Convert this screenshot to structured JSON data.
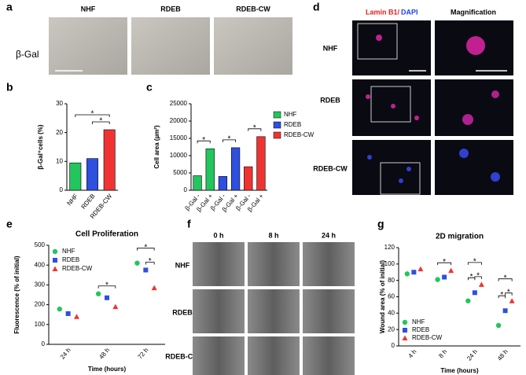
{
  "panel_letters": [
    "a",
    "b",
    "c",
    "d",
    "e",
    "f",
    "g"
  ],
  "panel_a": {
    "row_label": "β-Gal",
    "columns": [
      "NHF",
      "RDEB",
      "RDEB-CW"
    ]
  },
  "panel_d": {
    "stain_red": "Lamin B1/",
    "stain_blue": "DAPI",
    "column_2": "Magnification",
    "rows": [
      "NHF",
      "RDEB",
      "RDEB-CW"
    ]
  },
  "panel_f": {
    "columns": [
      "0 h",
      "8 h",
      "24 h"
    ],
    "rows": [
      "NHF",
      "RDEB",
      "RDEB-CW"
    ]
  },
  "chart_data": [
    {
      "type": "bar",
      "ylabel": "β-Gal⁺cells (%)",
      "categories": [
        "NHF",
        "RDEB",
        "RDEB-CW"
      ],
      "values": [
        9.5,
        11,
        21
      ],
      "colors": [
        "#22c55e",
        "#2f4fe0",
        "#ef3333"
      ],
      "ylim": [
        0,
        30
      ],
      "yticks": [
        0,
        10,
        20,
        30
      ],
      "annotations": [
        {
          "label": "*",
          "between": [
            0,
            2
          ]
        },
        {
          "label": "*",
          "between": [
            1,
            2
          ]
        }
      ]
    },
    {
      "type": "bar",
      "ylabel": "Cell area (µm²)",
      "categories": [
        "β-Gal -",
        "β-Gal +",
        "β-Gal -",
        "β-Gal +",
        "β-Gal -",
        "β-Gal +"
      ],
      "series": [
        {
          "name": "NHF",
          "color": "#22c55e",
          "values": [
            4200,
            12000,
            null,
            null,
            null,
            null
          ]
        },
        {
          "name": "RDEB",
          "color": "#2f4fe0",
          "values": [
            null,
            null,
            4000,
            12300,
            null,
            null
          ]
        },
        {
          "name": "RDEB-CW",
          "color": "#ef3333",
          "values": [
            null,
            null,
            null,
            null,
            6800,
            15500
          ]
        }
      ],
      "ylim": [
        0,
        25000
      ],
      "yticks": [
        0,
        5000,
        10000,
        15000,
        20000,
        25000
      ],
      "legend": "right",
      "annotations": [
        {
          "label": "*",
          "between": [
            0,
            1
          ]
        },
        {
          "label": "*",
          "between": [
            2,
            3
          ]
        },
        {
          "label": "*",
          "between": [
            4,
            5
          ]
        }
      ]
    },
    {
      "type": "dot",
      "title": "Cell Proliferation",
      "ylabel": "Fluorescence (% of initial)",
      "xlabel": "Time (hours)",
      "categories": [
        "24 h",
        "48 h",
        "72 h"
      ],
      "series": [
        {
          "name": "NHF",
          "color": "#22c55e",
          "marker": "circle",
          "values": [
            178,
            255,
            410
          ]
        },
        {
          "name": "RDEB",
          "color": "#2f4fe0",
          "marker": "square",
          "values": [
            155,
            235,
            375
          ]
        },
        {
          "name": "RDEB-CW",
          "color": "#ef3333",
          "marker": "triangle",
          "values": [
            140,
            190,
            285
          ]
        }
      ],
      "ylim": [
        0,
        500
      ],
      "yticks": [
        0,
        100,
        200,
        300,
        400,
        500
      ],
      "legend": "upper left",
      "annotations": [
        {
          "label": "*",
          "category": 1,
          "between": [
            0,
            2
          ]
        },
        {
          "label": "*",
          "category": 2,
          "between": [
            0,
            2
          ]
        },
        {
          "label": "*",
          "category": 2,
          "between": [
            1,
            2
          ]
        }
      ]
    },
    {
      "type": "dot",
      "title": "2D migration",
      "ylabel": "Wound area (% of initial)",
      "xlabel": "Time (hours)",
      "categories": [
        "4 h",
        "8 h",
        "24 h",
        "48 h"
      ],
      "series": [
        {
          "name": "NHF",
          "color": "#22c55e",
          "marker": "circle",
          "values": [
            88,
            81,
            55,
            25
          ]
        },
        {
          "name": "RDEB",
          "color": "#2f4fe0",
          "marker": "square",
          "values": [
            90,
            84,
            65,
            43
          ]
        },
        {
          "name": "RDEB-CW",
          "color": "#ef3333",
          "marker": "triangle",
          "values": [
            94,
            92,
            75,
            55
          ]
        }
      ],
      "ylim": [
        0,
        120
      ],
      "yticks": [
        0,
        20,
        40,
        60,
        80,
        100,
        120
      ],
      "legend": "lower left",
      "annotations": [
        {
          "label": "*",
          "category": 1,
          "between": [
            0,
            2
          ]
        },
        {
          "label": "*",
          "category": 2,
          "between": [
            0,
            2
          ]
        },
        {
          "label": "*",
          "category": 2,
          "between": [
            0,
            1
          ]
        },
        {
          "label": "*",
          "category": 2,
          "between": [
            1,
            2
          ]
        },
        {
          "label": "*",
          "category": 3,
          "between": [
            0,
            2
          ]
        },
        {
          "label": "*",
          "category": 3,
          "between": [
            0,
            1
          ]
        },
        {
          "label": "*",
          "category": 3,
          "between": [
            1,
            2
          ]
        }
      ]
    }
  ]
}
